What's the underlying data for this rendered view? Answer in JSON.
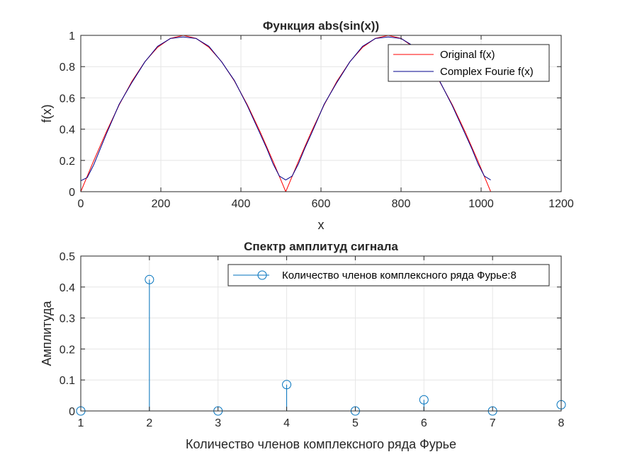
{
  "chart_data": [
    {
      "type": "line",
      "title": "Функция abs(sin(x))",
      "xlabel": "x",
      "ylabel": "f(x)",
      "xlim": [
        0,
        1200
      ],
      "ylim": [
        0,
        1
      ],
      "xticks": [
        0,
        200,
        400,
        600,
        800,
        1000,
        1200
      ],
      "yticks": [
        0,
        0.2,
        0.4,
        0.6,
        0.8,
        1
      ],
      "xtick_labels": [
        "0",
        "200",
        "400",
        "600",
        "800",
        "1000",
        "1200"
      ],
      "ytick_labels": [
        "0",
        "0.2",
        "0.4",
        "0.6",
        "0.8",
        "1"
      ],
      "grid": true,
      "legend_position": "top-right",
      "series": [
        {
          "name": "Original f(x)",
          "color": "#ff0000",
          "x": [
            0,
            32,
            64,
            96,
            128,
            160,
            192,
            224,
            256,
            288,
            320,
            352,
            384,
            416,
            448,
            480,
            512,
            544,
            576,
            608,
            640,
            672,
            704,
            736,
            768,
            800,
            832,
            864,
            896,
            928,
            960,
            992,
            1024
          ],
          "y": [
            0,
            0.196,
            0.383,
            0.556,
            0.707,
            0.831,
            0.924,
            0.981,
            1,
            0.981,
            0.924,
            0.831,
            0.707,
            0.556,
            0.383,
            0.196,
            0,
            0.196,
            0.383,
            0.556,
            0.707,
            0.831,
            0.924,
            0.981,
            1,
            0.981,
            0.924,
            0.831,
            0.707,
            0.556,
            0.383,
            0.196,
            0
          ]
        },
        {
          "name": "Complex Fourie f(x)",
          "color": "#00008b",
          "x": [
            0,
            16,
            32,
            48,
            64,
            96,
            128,
            160,
            192,
            224,
            256,
            288,
            320,
            352,
            384,
            416,
            448,
            464,
            480,
            496,
            512,
            528,
            544,
            560,
            576,
            608,
            640,
            672,
            704,
            736,
            768,
            800,
            832,
            864,
            896,
            928,
            960,
            976,
            992,
            1008,
            1024
          ],
          "y": [
            0.07,
            0.09,
            0.17,
            0.27,
            0.37,
            0.56,
            0.7,
            0.83,
            0.93,
            0.98,
            0.99,
            0.98,
            0.93,
            0.83,
            0.71,
            0.55,
            0.37,
            0.28,
            0.18,
            0.1,
            0.075,
            0.1,
            0.18,
            0.28,
            0.37,
            0.56,
            0.7,
            0.83,
            0.93,
            0.98,
            0.99,
            0.98,
            0.93,
            0.83,
            0.71,
            0.55,
            0.37,
            0.28,
            0.18,
            0.1,
            0.075
          ]
        }
      ]
    },
    {
      "type": "stem",
      "title": "Спектр амплитуд сигнала",
      "xlabel": "Количество членов комплексного ряда Фурье",
      "ylabel": "Амплитуда",
      "xlim": [
        1,
        8
      ],
      "ylim": [
        0,
        0.5
      ],
      "xticks": [
        1,
        2,
        3,
        4,
        5,
        6,
        7,
        8
      ],
      "yticks": [
        0,
        0.1,
        0.2,
        0.3,
        0.4,
        0.5
      ],
      "xtick_labels": [
        "1",
        "2",
        "3",
        "4",
        "5",
        "6",
        "7",
        "8"
      ],
      "ytick_labels": [
        "0",
        "0.1",
        "0.2",
        "0.3",
        "0.4",
        "0.5"
      ],
      "grid": true,
      "legend_position": "top-right",
      "series": [
        {
          "name": "Количество членов комплексного ряда Фурье:8",
          "color": "#0072bd",
          "x": [
            1,
            2,
            3,
            4,
            5,
            6,
            7,
            8
          ],
          "y": [
            0,
            0.424,
            0,
            0.085,
            0,
            0.036,
            0,
            0.02
          ]
        }
      ]
    }
  ]
}
